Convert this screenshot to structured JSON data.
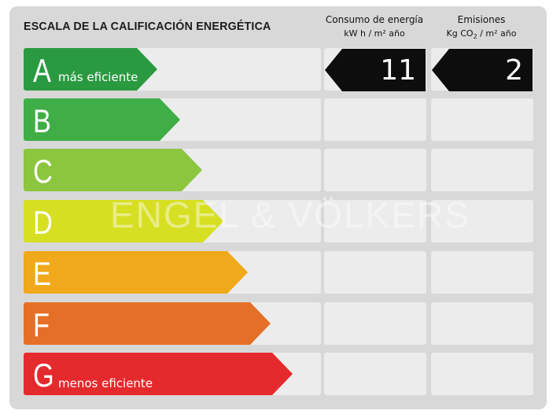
{
  "title": "ESCALA DE LA CALIFICACIÓN ENERGÉTICA",
  "columns": {
    "energy": {
      "header": "Consumo de energía",
      "unit": "kW h / m² año"
    },
    "emissions": {
      "header": "Emisiones",
      "unit_prefix": "Kg CO",
      "unit_sub": "2",
      "unit_suffix": " / m² año"
    }
  },
  "rating": {
    "energy_value": "11",
    "emissions_value": "2",
    "badge_color": "#0d0d0d"
  },
  "classes": [
    {
      "letter": "A",
      "label": "más eficiente",
      "color": "#2a9a41"
    },
    {
      "letter": "B",
      "label": "",
      "color": "#3fae46"
    },
    {
      "letter": "C",
      "label": "",
      "color": "#8cc63f"
    },
    {
      "letter": "D",
      "label": "",
      "color": "#d7df23"
    },
    {
      "letter": "E",
      "label": "",
      "color": "#f0a91b"
    },
    {
      "letter": "F",
      "label": "",
      "color": "#e66f27"
    },
    {
      "letter": "G",
      "label": "menos eficiente",
      "color": "#e52a2d"
    }
  ],
  "watermark": "ENGEL & VÖLKERS"
}
